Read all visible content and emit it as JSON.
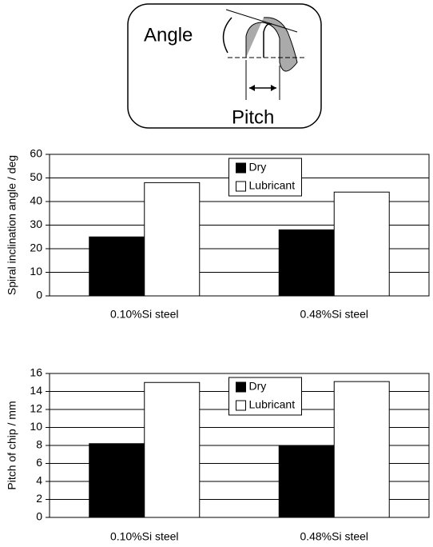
{
  "diagram": {
    "angle_label": "Angle",
    "pitch_label": "Pitch"
  },
  "chart_data": [
    {
      "type": "bar",
      "ylabel": "Spiral inclination angle / deg",
      "categories": [
        "0.10%Si steel",
        "0.48%Si steel"
      ],
      "series": [
        {
          "name": "Dry",
          "color": "#000000",
          "values": [
            25,
            28
          ]
        },
        {
          "name": "Lubricant",
          "color": "#ffffff",
          "values": [
            48,
            44
          ]
        }
      ],
      "ylim": [
        0,
        60
      ],
      "yticks": [
        0,
        10,
        20,
        30,
        40,
        50,
        60
      ],
      "grid": true,
      "legend": "upper center"
    },
    {
      "type": "bar",
      "ylabel": "Pitch of chip / mm",
      "categories": [
        "0.10%Si steel",
        "0.48%Si steel"
      ],
      "series": [
        {
          "name": "Dry",
          "color": "#000000",
          "values": [
            8.2,
            8.0
          ]
        },
        {
          "name": "Lubricant",
          "color": "#ffffff",
          "values": [
            15.0,
            15.1
          ]
        }
      ],
      "ylim": [
        0,
        16
      ],
      "yticks": [
        0,
        2,
        4,
        6,
        8,
        10,
        12,
        14,
        16
      ],
      "grid": true,
      "legend": "upper center"
    }
  ]
}
